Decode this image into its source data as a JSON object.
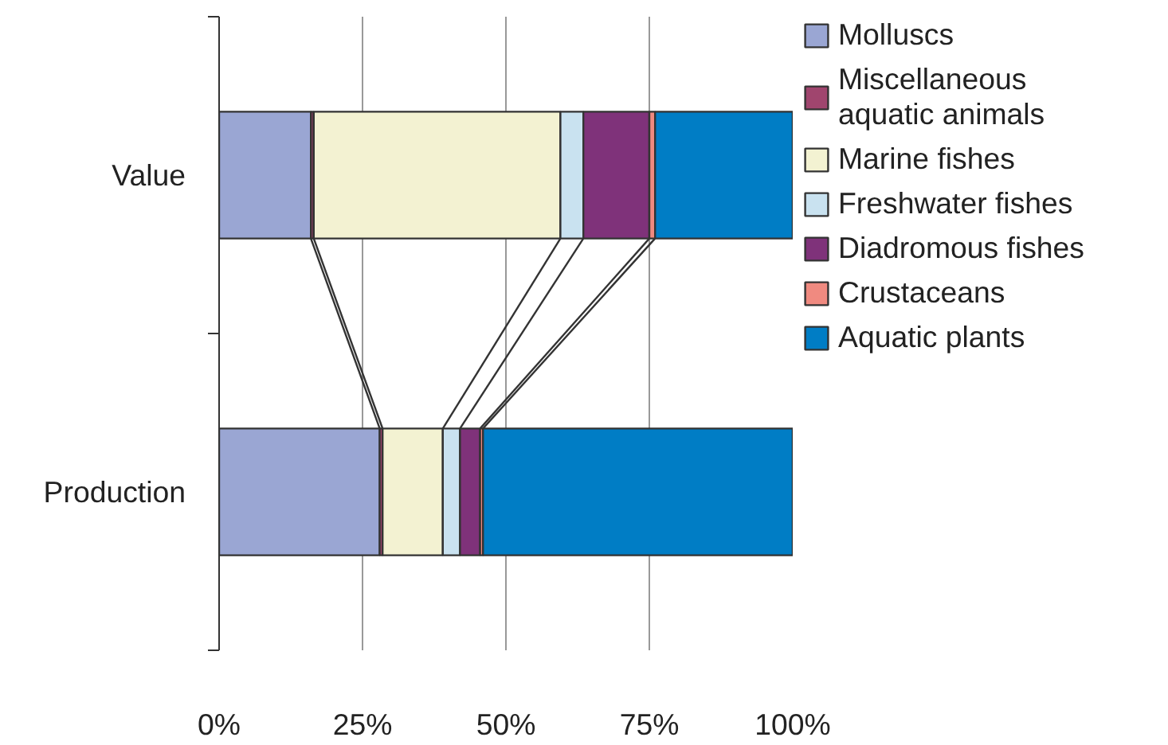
{
  "chart_data": {
    "type": "bar",
    "orientation": "horizontal",
    "stacked": true,
    "categories": [
      "Value",
      "Production"
    ],
    "series": [
      {
        "name": "Molluscs",
        "color": "#9aa6d3",
        "values": [
          16,
          28
        ]
      },
      {
        "name": "Miscellaneous aquatic animals",
        "color": "#a0456e",
        "values": [
          0.5,
          0.5
        ]
      },
      {
        "name": "Marine fishes",
        "color": "#f3f2d2",
        "values": [
          43,
          10.5
        ]
      },
      {
        "name": "Freshwater fishes",
        "color": "#c9e2f0",
        "values": [
          4,
          3
        ]
      },
      {
        "name": "Diadromous fishes",
        "color": "#7f327a",
        "values": [
          11.5,
          3.5
        ]
      },
      {
        "name": "Crustaceans",
        "color": "#f08a80",
        "values": [
          1,
          0.5
        ]
      },
      {
        "name": "Aquatic plants",
        "color": "#007dc5",
        "values": [
          24,
          54
        ]
      }
    ],
    "xlim": [
      0,
      100
    ],
    "xticks": [
      {
        "value": 0,
        "label": "0%"
      },
      {
        "value": 25,
        "label": "25%"
      },
      {
        "value": 50,
        "label": "50%"
      },
      {
        "value": 75,
        "label": "75%"
      },
      {
        "value": 100,
        "label": "100%"
      }
    ],
    "grid": "x",
    "legend": "right"
  }
}
